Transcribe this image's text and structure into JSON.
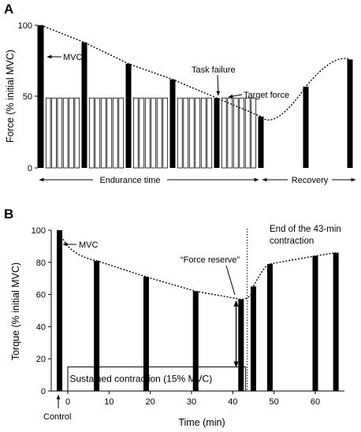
{
  "chart_data": [
    {
      "panel_label": "A",
      "type": "bar",
      "ylabel": "Force (% initial MVC)",
      "ylim": [
        0,
        100
      ],
      "yticks": [
        "0",
        "50",
        "100"
      ],
      "mvc_bars": [
        100,
        88,
        73,
        62,
        49,
        36,
        57,
        76
      ],
      "target_force": 49,
      "submaximal_contractions_per_block": 6,
      "annotations": {
        "mvc": "MVC",
        "task_failure": "Task failure",
        "target_force": "Target  force",
        "endurance_time": "Endurance time",
        "recovery": "Recovery"
      }
    },
    {
      "panel_label": "B",
      "type": "bar",
      "xlabel": "Time (min)",
      "ylabel": "Torque (% initial MVC)",
      "xlim": [
        -3,
        67
      ],
      "ylim": [
        0,
        100
      ],
      "xticks": [
        "0",
        "10",
        "20",
        "30",
        "40",
        "50",
        "60"
      ],
      "yticks": [
        "0",
        "20",
        "40",
        "60",
        "80",
        "100"
      ],
      "bars": [
        {
          "x": -2,
          "y": 100
        },
        {
          "x": 7,
          "y": 81
        },
        {
          "x": 19,
          "y": 71
        },
        {
          "x": 31,
          "y": 62
        },
        {
          "x": 42,
          "y": 57
        },
        {
          "x": 45,
          "y": 65
        },
        {
          "x": 49,
          "y": 79
        },
        {
          "x": 60,
          "y": 84
        },
        {
          "x": 65,
          "y": 86
        }
      ],
      "contraction_end_x": 43.5,
      "sustained_level": 15,
      "force_reserve_top": 56,
      "annotations": {
        "mvc": "MVC",
        "control": "Control",
        "force_reserve": "“Force reserve”",
        "end_line1": "End of the 43-min",
        "end_line2": "contraction",
        "sustained": "Sustained contraction (15% MVC)"
      }
    }
  ]
}
